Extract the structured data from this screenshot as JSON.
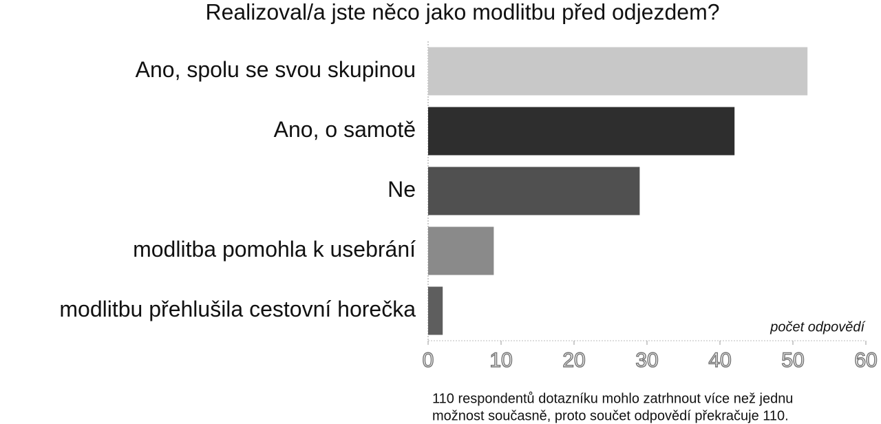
{
  "chart_data": {
    "type": "barh",
    "title": "Realizoval/a jste něco jako modlitbu před odjezdem?",
    "categories": [
      "Ano, spolu se svou skupinou",
      "Ano, o samotě",
      "Ne",
      "modlitba pomohla k usebrání",
      "modlitbu přehlušila cestovní horečka"
    ],
    "values": [
      52,
      42,
      29,
      9,
      2
    ],
    "colors": [
      "#c8c8c8",
      "#2e2e2e",
      "#505050",
      "#8a8a8a",
      "#5e5e5e"
    ],
    "xlabel": "počet odpovědí",
    "xlim": [
      0,
      60
    ],
    "xticks": [
      0,
      10,
      20,
      30,
      40,
      50,
      60
    ],
    "note": [
      "110 respondentů dotazníku mohlo zatrhnout více než jednu",
      "možnost současně, proto součet odpovědí překračuje 110."
    ]
  }
}
